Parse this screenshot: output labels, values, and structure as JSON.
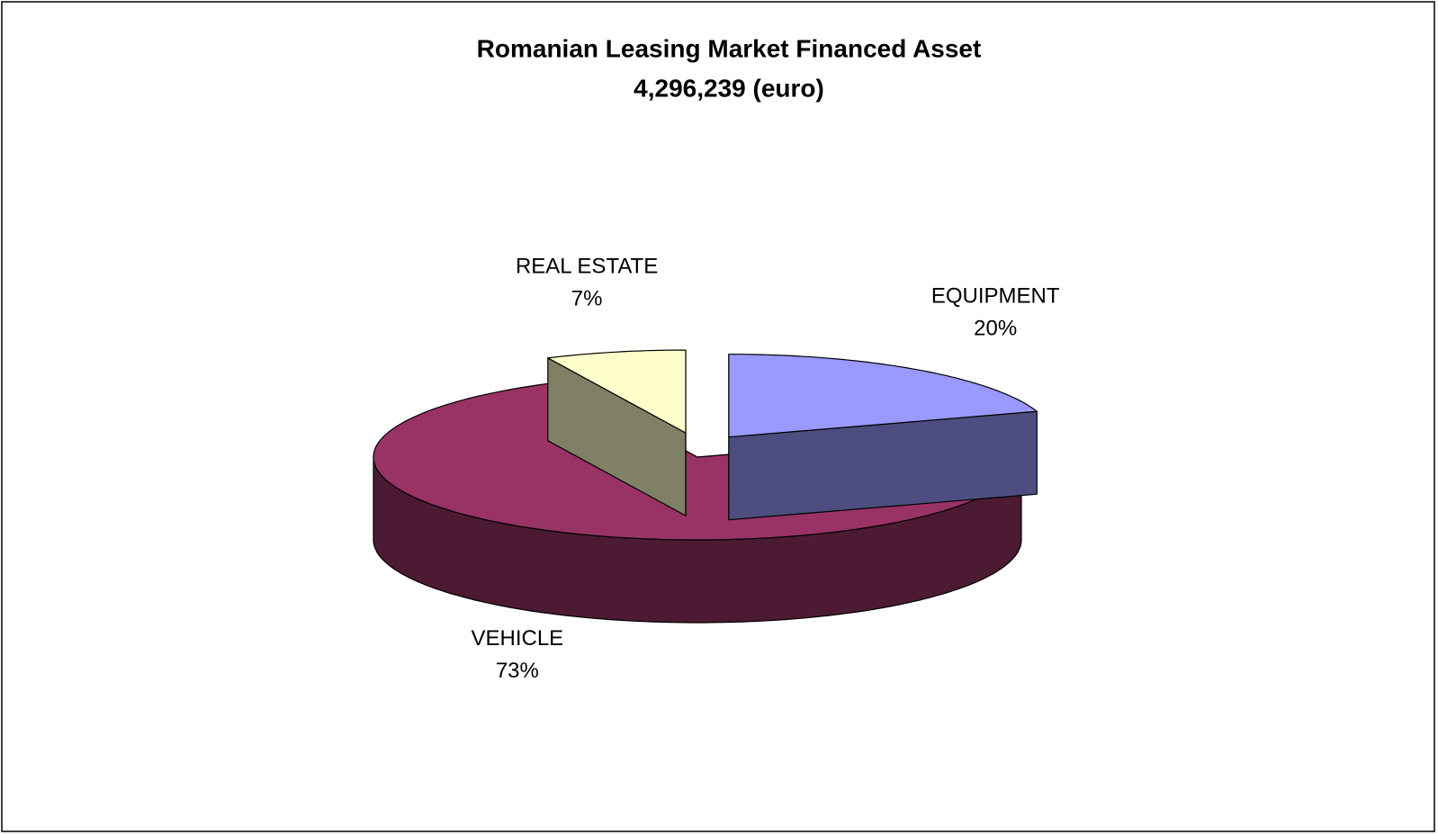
{
  "chart_data": {
    "type": "pie3d",
    "title": "Romanian Leasing Market Financed Asset",
    "subtitle": "4,296,239 (euro)",
    "categories": [
      "EQUIPMENT",
      "VEHICLE",
      "REAL ESTATE"
    ],
    "values": [
      20,
      73,
      7
    ],
    "value_labels": [
      "20%",
      "73%",
      "7%"
    ],
    "colors": [
      "#9999ff",
      "#993366",
      "#ffffcc"
    ],
    "exploded": [
      true,
      false,
      true
    ]
  }
}
